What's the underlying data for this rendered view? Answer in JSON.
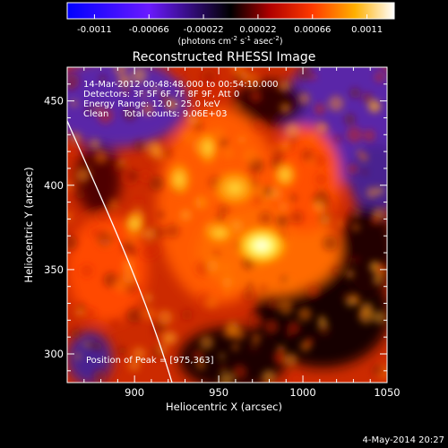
{
  "colorbar": {
    "tick_labels": [
      "-0.0011",
      "-0.00066",
      "-0.00022",
      "0.00022",
      "0.00066",
      "0.0011"
    ],
    "units_line": "(photons cm",
    "units_exp1": "-2",
    "units_mid1": " s",
    "units_exp2": "-1",
    "units_mid2": " asec",
    "units_exp3": "-2",
    "units_end": ")"
  },
  "plot": {
    "title": "Reconstructed RHESSI Image",
    "info_lines": [
      "14-Mar-2012 00:48:48.000 to 00:54:10.000",
      "Detectors: 3F 5F 6F 7F 8F 9F, Att 0",
      "Energy Range: 12.0 - 25.0 keV",
      "Clean     Total counts: 9.06E+03"
    ],
    "peak_label": "Position of Peak = [975,363]",
    "xlabel": "Heliocentric X (arcsec)",
    "ylabel": "Heliocentric Y (arcsec)",
    "xticks": [
      {
        "value": 900,
        "label": "900"
      },
      {
        "value": 950,
        "label": "950"
      },
      {
        "value": 1000,
        "label": "1000"
      },
      {
        "value": 1050,
        "label": "1050"
      }
    ],
    "yticks": [
      {
        "value": 300,
        "label": "300"
      },
      {
        "value": 350,
        "label": "350"
      },
      {
        "value": 400,
        "label": "400"
      },
      {
        "value": 450,
        "label": "450"
      }
    ],
    "xlim": [
      860,
      1050
    ],
    "ylim": [
      283,
      470
    ],
    "peak": [
      975,
      363
    ]
  },
  "footer": {
    "date": "4-May-2014 20:27"
  }
}
